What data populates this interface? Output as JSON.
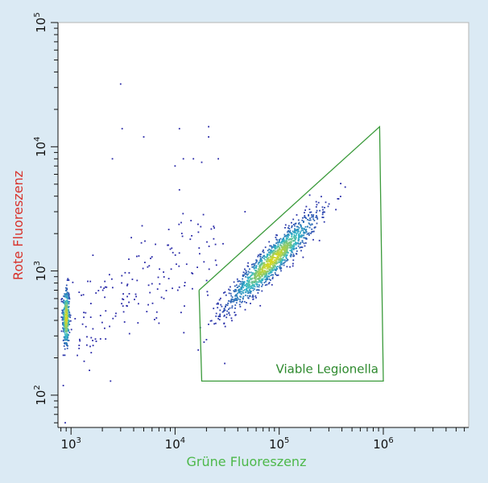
{
  "chart_data": {
    "type": "scatter",
    "title": "",
    "xlabel": "Grüne Fluoreszenz",
    "ylabel": "Rote Fluoreszenz",
    "x_scale": "log",
    "y_scale": "log",
    "xlim": [
      750,
      6600000
    ],
    "ylim": [
      55,
      100000
    ],
    "x_ticks": [
      {
        "base": "10",
        "exp": "3",
        "value": 1000
      },
      {
        "base": "10",
        "exp": "4",
        "value": 10000
      },
      {
        "base": "10",
        "exp": "5",
        "value": 100000
      },
      {
        "base": "10",
        "exp": "6",
        "value": 1000000
      }
    ],
    "y_ticks": [
      {
        "base": "10",
        "exp": "2",
        "value": 100
      },
      {
        "base": "10",
        "exp": "3",
        "value": 1000
      },
      {
        "base": "10",
        "exp": "4",
        "value": 10000
      },
      {
        "base": "10",
        "exp": "5",
        "value": 100000
      }
    ],
    "grid": false,
    "colors": {
      "gate": "#3a9a3a",
      "density_low": "#2a2aa8",
      "density_mid": "#2fb8c8",
      "density_high": "#d8d820",
      "xlabel": "#4db84a",
      "ylabel": "#d8322b",
      "background": "#dbeaf4"
    },
    "gate": {
      "label": "Viable Legionella",
      "vertices": [
        [
          17000,
          700
        ],
        [
          18000,
          130
        ],
        [
          1000000,
          130
        ],
        [
          920000,
          14500
        ],
        [
          17000,
          700
        ]
      ]
    },
    "populations": [
      {
        "kind": "cluster",
        "cx": 900,
        "cy": 420,
        "sx": 0.018,
        "sy": 0.13,
        "corr": 0.0,
        "n": 320
      },
      {
        "kind": "cluster",
        "cx": 85000,
        "cy": 1200,
        "sx": 0.22,
        "sy": 0.19,
        "corr": 0.93,
        "n": 1300
      },
      {
        "kind": "scatter",
        "xmin": 900,
        "xmax": 25000,
        "ymin": 300,
        "ymax": 15000,
        "n": 170
      }
    ],
    "outliers": [
      [
        3000,
        32000
      ],
      [
        3100,
        14000
      ],
      [
        5000,
        12000
      ],
      [
        11000,
        14000
      ],
      [
        21000,
        14500
      ],
      [
        21000,
        12000
      ],
      [
        2500,
        8000
      ],
      [
        10000,
        7000
      ],
      [
        12000,
        8000
      ],
      [
        15000,
        8000
      ],
      [
        18000,
        7500
      ],
      [
        26000,
        8000
      ],
      [
        11000,
        4500
      ],
      [
        7000,
        380
      ],
      [
        2400,
        130
      ],
      [
        880,
        60
      ],
      [
        30000,
        180
      ],
      [
        20000,
        280
      ],
      [
        27000,
        430
      ],
      [
        47000,
        3000
      ],
      [
        9000,
        1500
      ],
      [
        14000,
        1800
      ]
    ]
  }
}
